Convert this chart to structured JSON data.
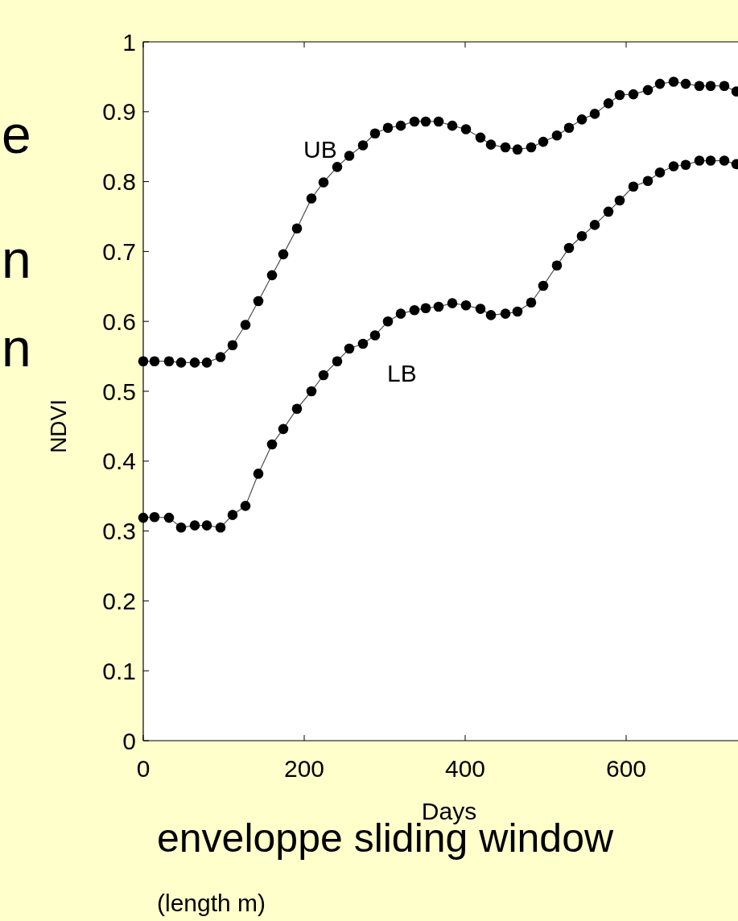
{
  "chart_data": {
    "type": "line",
    "xlabel": "Days",
    "ylabel": "NDVI",
    "xlim": [
      0,
      739
    ],
    "ylim": [
      0,
      1
    ],
    "xticks": [
      0,
      200,
      400,
      600
    ],
    "yticks": [
      0,
      0.1,
      0.2,
      0.3,
      0.4,
      0.5,
      0.6,
      0.7,
      0.8,
      0.9,
      1
    ],
    "x": [
      0,
      14,
      32,
      47,
      64,
      79,
      96,
      111,
      127,
      143,
      160,
      174,
      191,
      209,
      224,
      241,
      256,
      273,
      288,
      304,
      320,
      337,
      351,
      367,
      384,
      401,
      419,
      432,
      450,
      465,
      482,
      497,
      514,
      529,
      545,
      561,
      578,
      592,
      609,
      627,
      642,
      659,
      674,
      691,
      705,
      722,
      737
    ],
    "series": [
      {
        "name": "UB",
        "color": "#000000",
        "values": [
          0.543,
          0.543,
          0.543,
          0.541,
          0.541,
          0.541,
          0.549,
          0.566,
          0.595,
          0.629,
          0.666,
          0.696,
          0.733,
          0.776,
          0.799,
          0.821,
          0.837,
          0.852,
          0.869,
          0.877,
          0.88,
          0.886,
          0.886,
          0.886,
          0.88,
          0.875,
          0.863,
          0.853,
          0.849,
          0.846,
          0.849,
          0.857,
          0.866,
          0.877,
          0.889,
          0.897,
          0.912,
          0.924,
          0.925,
          0.931,
          0.94,
          0.943,
          0.94,
          0.937,
          0.937,
          0.937,
          0.929
        ]
      },
      {
        "name": "LB",
        "color": "#000000",
        "values": [
          0.319,
          0.32,
          0.319,
          0.305,
          0.308,
          0.308,
          0.305,
          0.323,
          0.336,
          0.382,
          0.424,
          0.446,
          0.475,
          0.5,
          0.523,
          0.543,
          0.561,
          0.568,
          0.58,
          0.6,
          0.611,
          0.616,
          0.619,
          0.621,
          0.626,
          0.623,
          0.618,
          0.609,
          0.611,
          0.614,
          0.627,
          0.651,
          0.68,
          0.705,
          0.722,
          0.738,
          0.757,
          0.773,
          0.793,
          0.801,
          0.813,
          0.822,
          0.824,
          0.83,
          0.83,
          0.83,
          0.825
        ]
      }
    ],
    "marker": "circle",
    "line_style": "solid",
    "grid": false,
    "annotations": [
      "e",
      "n",
      "n",
      "enveloppe sliding window",
      "(length m)"
    ]
  }
}
